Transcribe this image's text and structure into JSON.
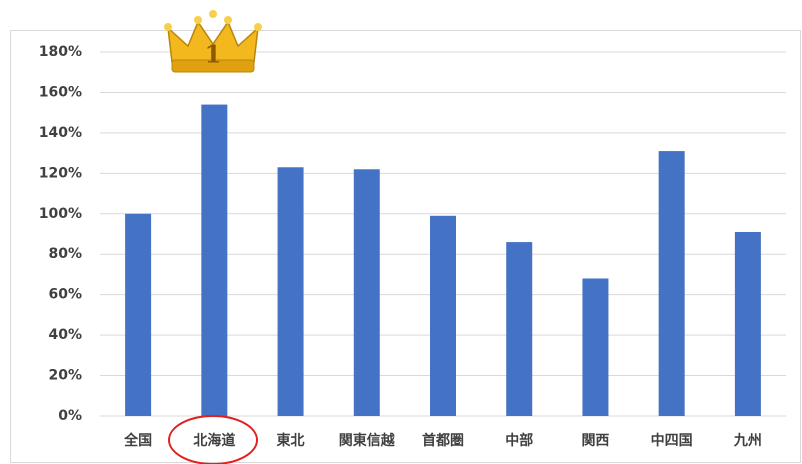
{
  "chart_data": {
    "type": "bar",
    "categories": [
      "全国",
      "北海道",
      "東北",
      "関東信越",
      "首都圏",
      "中部",
      "関西",
      "中四国",
      "九州"
    ],
    "values": [
      100,
      154,
      123,
      122,
      99,
      86,
      68,
      131,
      91
    ],
    "color": "#4472c4",
    "ylim": [
      0,
      180
    ],
    "yticks": [
      {
        "value": 0,
        "label": "0%"
      },
      {
        "value": 20,
        "label": "20%"
      },
      {
        "value": 40,
        "label": "40%"
      },
      {
        "value": 60,
        "label": "60%"
      },
      {
        "value": 80,
        "label": "80%"
      },
      {
        "value": 100,
        "label": "100%"
      },
      {
        "value": 120,
        "label": "120%"
      },
      {
        "value": 140,
        "label": "140%"
      },
      {
        "value": 160,
        "label": "160%"
      },
      {
        "value": 180,
        "label": "180%"
      }
    ],
    "grid": true,
    "annotation": "1"
  }
}
